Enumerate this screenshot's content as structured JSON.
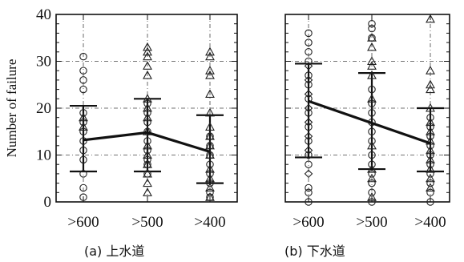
{
  "chart_data": [
    {
      "type": "scatter",
      "caption": "(a) 上水道",
      "ylabel": "Number of failure",
      "categories": [
        ">600",
        ">500",
        ">400"
      ],
      "ylim": [
        0,
        40
      ],
      "yticks": [
        0,
        10,
        20,
        30,
        40
      ],
      "grid": true,
      "series": [
        {
          "marker": "circle",
          "points": [
            {
              "x": 0,
              "y": 31
            },
            {
              "x": 0,
              "y": 28
            },
            {
              "x": 0,
              "y": 26
            },
            {
              "x": 0,
              "y": 24
            },
            {
              "x": 0,
              "y": 19
            },
            {
              "x": 0,
              "y": 17
            },
            {
              "x": 0,
              "y": 15
            },
            {
              "x": 0,
              "y": 13
            },
            {
              "x": 0,
              "y": 11
            },
            {
              "x": 0,
              "y": 9
            },
            {
              "x": 0,
              "y": 6
            },
            {
              "x": 0,
              "y": 3
            },
            {
              "x": 0,
              "y": 1
            },
            {
              "x": 1,
              "y": 21
            },
            {
              "x": 1,
              "y": 19
            },
            {
              "x": 1,
              "y": 17
            },
            {
              "x": 1,
              "y": 15
            },
            {
              "x": 1,
              "y": 13
            },
            {
              "x": 1,
              "y": 11
            },
            {
              "x": 1,
              "y": 9
            },
            {
              "x": 1,
              "y": 8
            },
            {
              "x": 1,
              "y": 6
            },
            {
              "x": 2,
              "y": 14
            },
            {
              "x": 2,
              "y": 12
            },
            {
              "x": 2,
              "y": 10
            },
            {
              "x": 2,
              "y": 8
            },
            {
              "x": 2,
              "y": 6
            },
            {
              "x": 2,
              "y": 4
            },
            {
              "x": 2,
              "y": 2
            },
            {
              "x": 2,
              "y": 1
            }
          ]
        },
        {
          "marker": "triangle",
          "points": [
            {
              "x": 0,
              "y": 18
            },
            {
              "x": 0,
              "y": 16
            },
            {
              "x": 1,
              "y": 33
            },
            {
              "x": 1,
              "y": 32
            },
            {
              "x": 1,
              "y": 31
            },
            {
              "x": 1,
              "y": 29
            },
            {
              "x": 1,
              "y": 27
            },
            {
              "x": 1,
              "y": 22
            },
            {
              "x": 1,
              "y": 20
            },
            {
              "x": 1,
              "y": 18
            },
            {
              "x": 1,
              "y": 15
            },
            {
              "x": 1,
              "y": 12
            },
            {
              "x": 1,
              "y": 10
            },
            {
              "x": 1,
              "y": 8
            },
            {
              "x": 1,
              "y": 6
            },
            {
              "x": 1,
              "y": 4
            },
            {
              "x": 1,
              "y": 2
            },
            {
              "x": 2,
              "y": 32
            },
            {
              "x": 2,
              "y": 31
            },
            {
              "x": 2,
              "y": 28
            },
            {
              "x": 2,
              "y": 27
            },
            {
              "x": 2,
              "y": 23
            },
            {
              "x": 2,
              "y": 19
            },
            {
              "x": 2,
              "y": 16
            },
            {
              "x": 2,
              "y": 14
            },
            {
              "x": 2,
              "y": 12
            },
            {
              "x": 2,
              "y": 10
            },
            {
              "x": 2,
              "y": 7
            },
            {
              "x": 2,
              "y": 5
            },
            {
              "x": 2,
              "y": 3
            },
            {
              "x": 2,
              "y": 1
            }
          ]
        }
      ],
      "error_bars": [
        {
          "x": 0,
          "low": 6.5,
          "high": 20.5
        },
        {
          "x": 1,
          "low": 6.5,
          "high": 22
        },
        {
          "x": 2,
          "low": 4,
          "high": 18.5
        }
      ],
      "trend": [
        {
          "x": 0,
          "y": 13.2
        },
        {
          "x": 1,
          "y": 14.8
        },
        {
          "x": 2,
          "y": 10.7
        }
      ]
    },
    {
      "type": "scatter",
      "caption": "(b) 下水道",
      "categories": [
        ">600",
        ">500",
        ">400"
      ],
      "ylim": [
        0,
        40
      ],
      "grid": true,
      "series": [
        {
          "marker": "circle",
          "points": [
            {
              "x": 0,
              "y": 36
            },
            {
              "x": 0,
              "y": 34
            },
            {
              "x": 0,
              "y": 32
            },
            {
              "x": 0,
              "y": 30
            },
            {
              "x": 0,
              "y": 27
            },
            {
              "x": 0,
              "y": 25
            },
            {
              "x": 0,
              "y": 22
            },
            {
              "x": 0,
              "y": 19
            },
            {
              "x": 0,
              "y": 16
            },
            {
              "x": 0,
              "y": 13
            },
            {
              "x": 0,
              "y": 10
            },
            {
              "x": 0,
              "y": 8
            },
            {
              "x": 0,
              "y": 3
            },
            {
              "x": 0,
              "y": 2
            },
            {
              "x": 0,
              "y": 0
            },
            {
              "x": 1,
              "y": 38
            },
            {
              "x": 1,
              "y": 37
            },
            {
              "x": 1,
              "y": 35
            },
            {
              "x": 1,
              "y": 24
            },
            {
              "x": 1,
              "y": 21
            },
            {
              "x": 1,
              "y": 19
            },
            {
              "x": 1,
              "y": 17
            },
            {
              "x": 1,
              "y": 15
            },
            {
              "x": 1,
              "y": 13
            },
            {
              "x": 1,
              "y": 10
            },
            {
              "x": 1,
              "y": 8
            },
            {
              "x": 1,
              "y": 6
            },
            {
              "x": 1,
              "y": 4
            },
            {
              "x": 1,
              "y": 2
            },
            {
              "x": 1,
              "y": 0
            },
            {
              "x": 2,
              "y": 18
            },
            {
              "x": 2,
              "y": 16
            },
            {
              "x": 2,
              "y": 14
            },
            {
              "x": 2,
              "y": 12
            },
            {
              "x": 2,
              "y": 10
            },
            {
              "x": 2,
              "y": 8
            },
            {
              "x": 2,
              "y": 6
            },
            {
              "x": 2,
              "y": 4
            },
            {
              "x": 2,
              "y": 2
            },
            {
              "x": 2,
              "y": 0
            }
          ]
        },
        {
          "marker": "triangle",
          "points": [
            {
              "x": 1,
              "y": 35
            },
            {
              "x": 1,
              "y": 33
            },
            {
              "x": 1,
              "y": 30
            },
            {
              "x": 1,
              "y": 29
            },
            {
              "x": 1,
              "y": 27
            },
            {
              "x": 1,
              "y": 22
            },
            {
              "x": 1,
              "y": 12
            },
            {
              "x": 1,
              "y": 7
            },
            {
              "x": 1,
              "y": 5
            },
            {
              "x": 1,
              "y": 1
            },
            {
              "x": 2,
              "y": 39
            },
            {
              "x": 2,
              "y": 28
            },
            {
              "x": 2,
              "y": 25
            },
            {
              "x": 2,
              "y": 24
            },
            {
              "x": 2,
              "y": 20
            },
            {
              "x": 2,
              "y": 17
            },
            {
              "x": 2,
              "y": 15
            },
            {
              "x": 2,
              "y": 13
            },
            {
              "x": 2,
              "y": 11
            },
            {
              "x": 2,
              "y": 9
            },
            {
              "x": 2,
              "y": 7
            },
            {
              "x": 2,
              "y": 5
            },
            {
              "x": 2,
              "y": 3
            }
          ]
        },
        {
          "marker": "diamond",
          "points": [
            {
              "x": 0,
              "y": 29
            },
            {
              "x": 0,
              "y": 26
            },
            {
              "x": 0,
              "y": 23
            },
            {
              "x": 0,
              "y": 20
            },
            {
              "x": 0,
              "y": 17
            },
            {
              "x": 0,
              "y": 14
            },
            {
              "x": 0,
              "y": 11
            },
            {
              "x": 0,
              "y": 6
            }
          ]
        }
      ],
      "error_bars": [
        {
          "x": 0,
          "low": 9.5,
          "high": 29.5
        },
        {
          "x": 1,
          "low": 7,
          "high": 27.5
        },
        {
          "x": 2,
          "low": 6.5,
          "high": 20
        }
      ],
      "trend": [
        {
          "x": 0,
          "y": 21.5
        },
        {
          "x": 2,
          "y": 12.5
        }
      ]
    }
  ]
}
